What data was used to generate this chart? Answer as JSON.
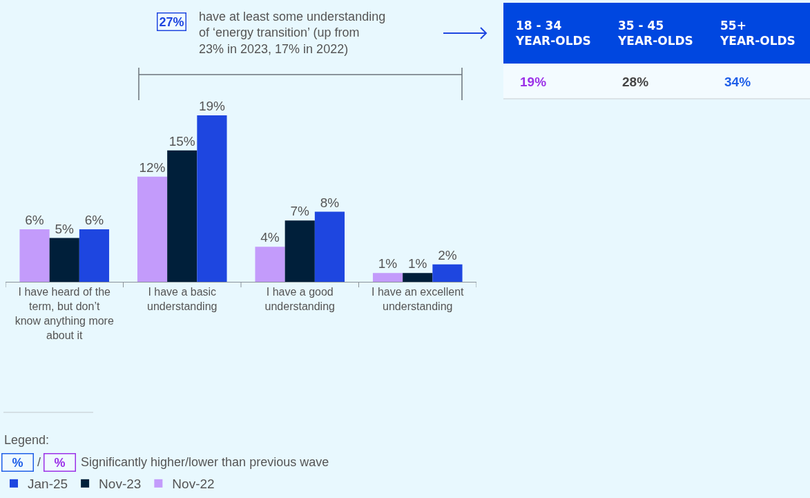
{
  "chart_data": [
    {
      "type": "bar",
      "categories": [
        "I have heard of the term, but don’t know anything more about it",
        "I have a basic understanding",
        "I have a good understanding",
        "I have an excellent understanding"
      ],
      "series": [
        {
          "name": "Nov-22",
          "color": "#c39bfb",
          "values": [
            6,
            12,
            4,
            1
          ],
          "value_labels": [
            "6%",
            "12%",
            "4%",
            "1%"
          ]
        },
        {
          "name": "Nov-23",
          "color": "#001f3a",
          "values": [
            5,
            15,
            7,
            1
          ],
          "value_labels": [
            "5%",
            "15%",
            "7%",
            "1%"
          ]
        },
        {
          "name": "Jan-25",
          "color": "#1e46e0",
          "values": [
            6,
            19,
            8,
            2
          ],
          "value_labels": [
            "6%",
            "19%",
            "8%",
            "2%"
          ]
        }
      ],
      "legend": "bottom left",
      "annotations": [
        "27%",
        "have at least some understanding\nof ‘energy transition’ (up from\n23% in 2023, 17% in 2022)",
        "Legend:",
        "%",
        "/",
        "%",
        "Significantly higher/lower than previous wave"
      ]
    },
    {
      "type": "other",
      "categories": [
        "18 - 34\nYEAR-OLDS",
        "35 - 45\nYEAR-OLDS",
        "55+\nYEAR-OLDS"
      ],
      "value_labels": [
        "19%",
        "28%",
        "34%"
      ],
      "colors": [
        "#9b30e8",
        "#444444",
        "#1e5ee8"
      ]
    }
  ]
}
